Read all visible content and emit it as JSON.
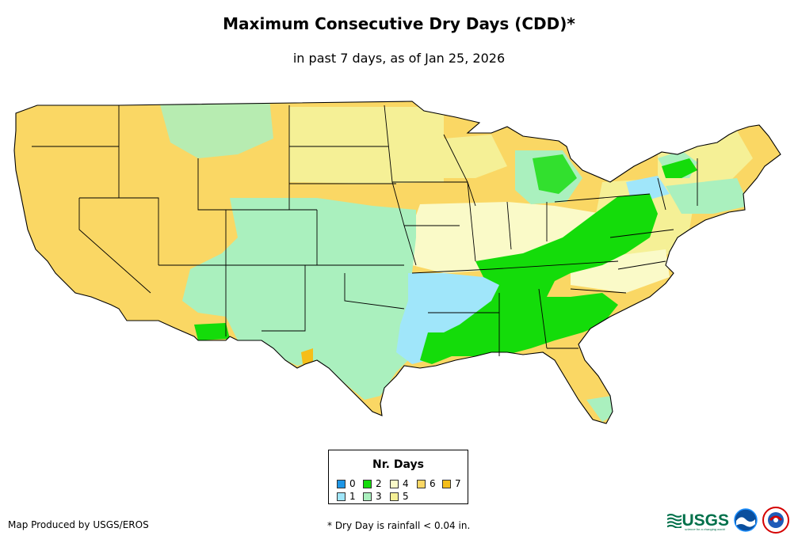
{
  "title": "Maximum Consecutive Dry Days (CDD)*",
  "subtitle": "in past 7 days, as of Jan 25, 2026",
  "legend": {
    "title": "Nr. Days",
    "items": [
      {
        "label": "0",
        "color": "#1e96e6"
      },
      {
        "label": "1",
        "color": "#a0e6fa"
      },
      {
        "label": "2",
        "color": "#14dc0a"
      },
      {
        "label": "3",
        "color": "#aaf0be"
      },
      {
        "label": "4",
        "color": "#fafac8"
      },
      {
        "label": "5",
        "color": "#f5f096"
      },
      {
        "label": "6",
        "color": "#fad764"
      },
      {
        "label": "7",
        "color": "#f5be19"
      }
    ]
  },
  "credit": "Map Produced by USGS/EROS",
  "footnote": "* Dry Day is rainfall < 0.04 in.",
  "logos": {
    "usgs": "USGS",
    "usgs_tagline": "science for a changing world"
  }
}
